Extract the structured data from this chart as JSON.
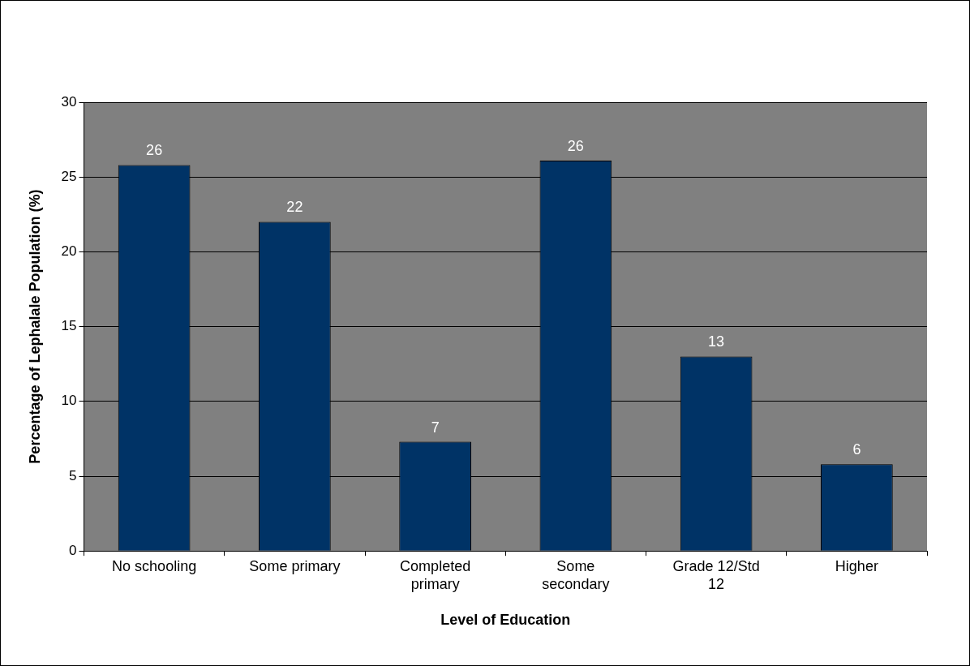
{
  "chart_data": {
    "type": "bar",
    "xlabel": "Level of Education",
    "ylabel": "Percentage of Lephalale Population (%)",
    "categories": [
      "No schooling",
      "Some primary",
      "Completed primary",
      "Some secondary",
      "Grade 12/Std 12",
      "Higher"
    ],
    "values": [
      25.8,
      22,
      7.3,
      26.1,
      13,
      5.8
    ],
    "value_labels": [
      "26",
      "22",
      "7",
      "26",
      "13",
      "6"
    ],
    "color": "#003366",
    "ylim": [
      0,
      30
    ],
    "yticks": [
      0,
      5,
      10,
      15,
      20,
      25,
      30
    ],
    "grid": "y"
  }
}
